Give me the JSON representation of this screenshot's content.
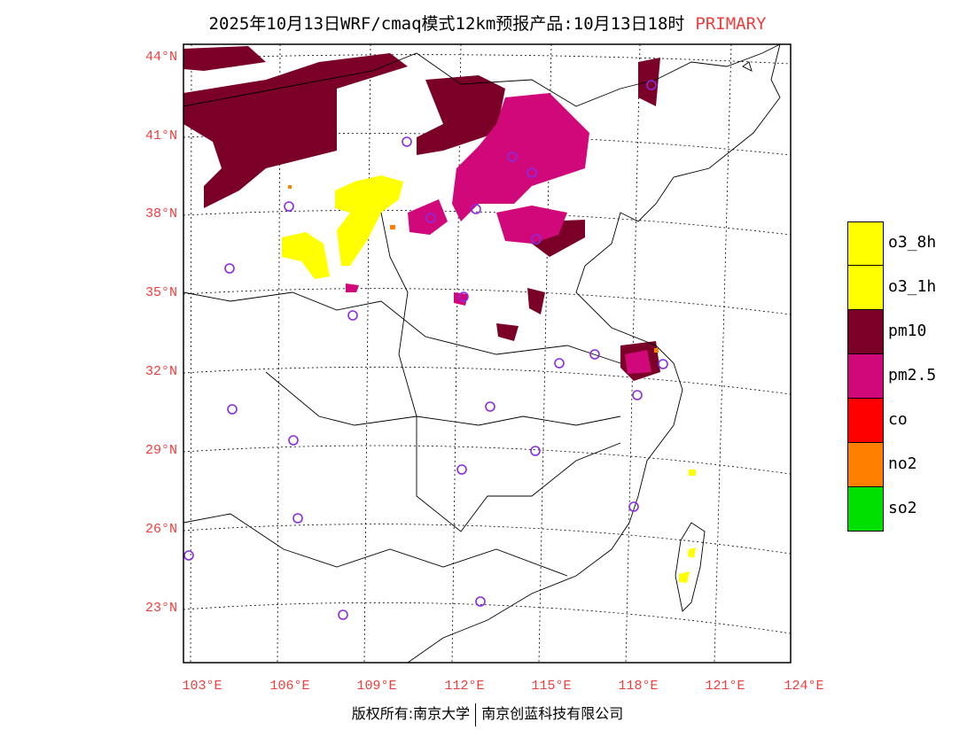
{
  "title": {
    "text": "2025年10月13日WRF/cmaq模式12km预报产品:10月13日18时",
    "tag": "PRIMARY"
  },
  "map": {
    "lat_labels": [
      "44°N",
      "41°N",
      "38°N",
      "35°N",
      "32°N",
      "29°N",
      "26°N",
      "23°N"
    ],
    "lon_labels": [
      "103°E",
      "106°E",
      "109°E",
      "112°E",
      "115°E",
      "118°E",
      "121°E",
      "124°E"
    ]
  },
  "legend": {
    "items": [
      {
        "label": "o3_8h",
        "color": "#ffff00"
      },
      {
        "label": "o3_1h",
        "color": "#ffff00"
      },
      {
        "label": "pm10",
        "color": "#7a0028"
      },
      {
        "label": "pm2.5",
        "color": "#d0087a"
      },
      {
        "label": "co",
        "color": "#ff0000"
      },
      {
        "label": "no2",
        "color": "#ff8000"
      },
      {
        "label": "so2",
        "color": "#00e000"
      }
    ]
  },
  "footer": {
    "left": "版权所有:南京大学",
    "right": "南京创蓝科技有限公司"
  }
}
